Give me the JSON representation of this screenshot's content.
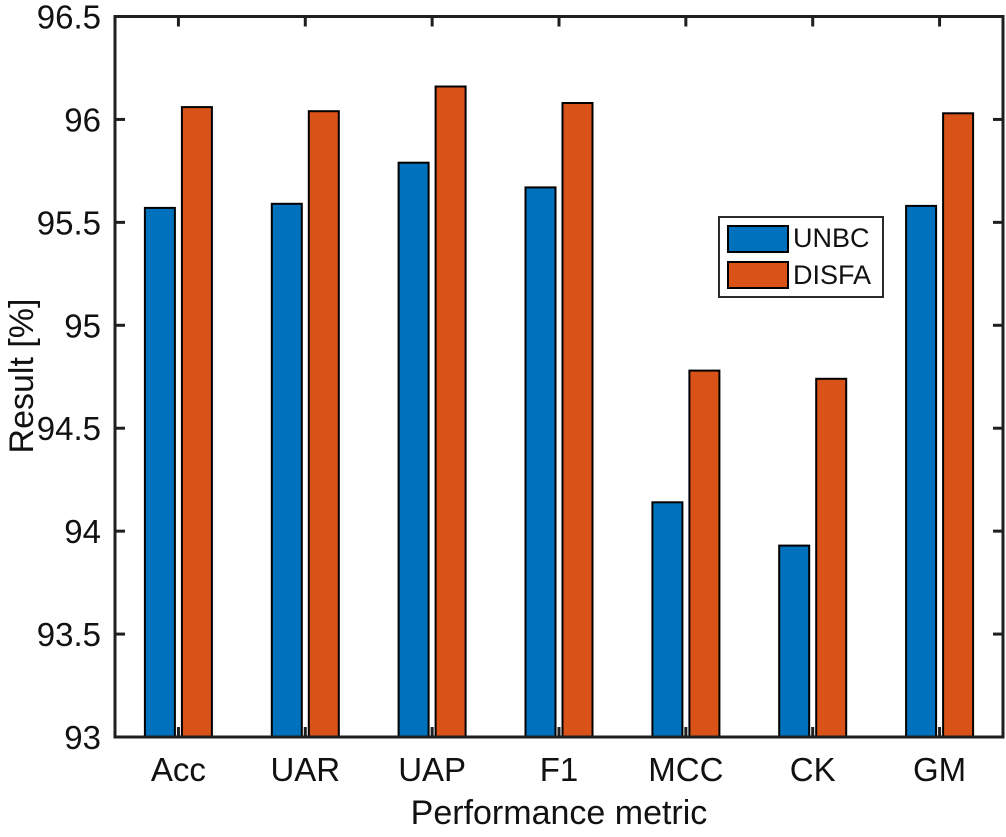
{
  "figure": {
    "background": "#ffffff",
    "axis_color": "#1f1f1f",
    "bar_edge_color": "#000000"
  },
  "chart_data": {
    "type": "bar",
    "title": "",
    "xlabel": "Performance metric",
    "ylabel": "Result [%]",
    "categories": [
      "Acc",
      "UAR",
      "UAP",
      "F1",
      "MCC",
      "CK",
      "GM"
    ],
    "series": [
      {
        "name": "UNBC",
        "color": "#0072BD",
        "values": [
          95.57,
          95.59,
          95.79,
          95.67,
          94.14,
          93.93,
          95.58
        ]
      },
      {
        "name": "DISFA",
        "color": "#D95319",
        "values": [
          96.06,
          96.04,
          96.16,
          96.08,
          94.78,
          94.74,
          96.03
        ]
      }
    ],
    "ylim": [
      93,
      96.5
    ],
    "ytick_step": 0.5,
    "ytick_labels": [
      "93",
      "93.5",
      "94",
      "94.5",
      "95",
      "95.5",
      "96",
      "96.5"
    ],
    "grid": false,
    "legend": {
      "position": "middle-right",
      "entries": [
        "UNBC",
        "DISFA"
      ]
    }
  }
}
